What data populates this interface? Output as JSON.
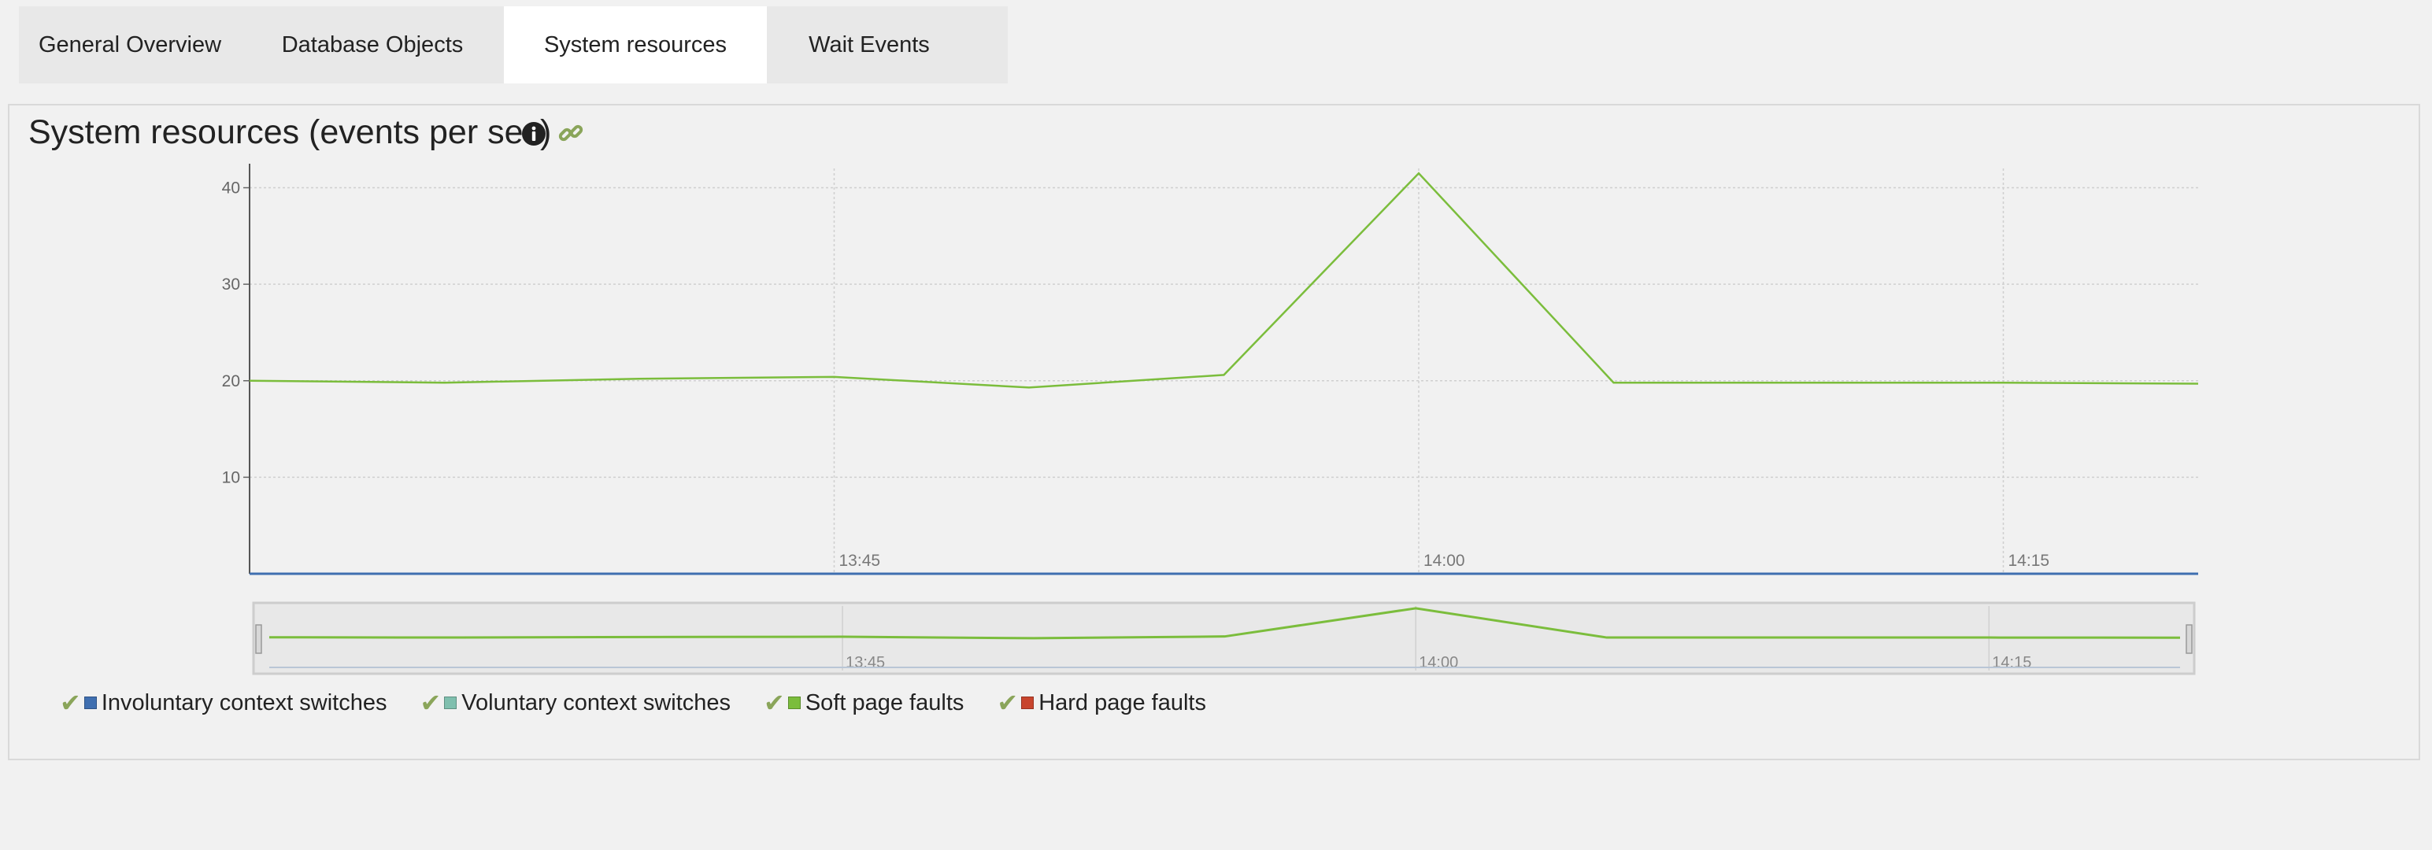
{
  "tabs": [
    {
      "label": "General Overview",
      "active": false
    },
    {
      "label": "Database Objects",
      "active": false
    },
    {
      "label": "System resources",
      "active": true
    },
    {
      "label": "Wait Events",
      "active": false
    }
  ],
  "panel": {
    "title": "System resources (events per sec)",
    "icons": [
      "info-icon",
      "link-icon"
    ]
  },
  "colors": {
    "involuntary": "#3f6fb0",
    "voluntary": "#7fbfae",
    "soft": "#7bbd3c",
    "hard": "#c8452e",
    "check": "#8aa55a"
  },
  "chart_data": {
    "type": "line",
    "x": [
      "13:30",
      "13:35",
      "13:40",
      "13:45",
      "13:50",
      "13:55",
      "14:00",
      "14:05",
      "14:10",
      "14:15",
      "14:20"
    ],
    "x_ticks": [
      "13:45",
      "14:00",
      "14:15"
    ],
    "y_ticks": [
      "10",
      "20",
      "30",
      "40"
    ],
    "ylim": [
      0,
      42
    ],
    "grid": true,
    "legend_position": "bottom-left",
    "series": [
      {
        "name": "Involuntary context switches",
        "color": "#3f6fb0",
        "values": [
          0,
          0,
          0,
          0,
          0,
          0,
          0,
          0,
          0,
          0,
          0
        ]
      },
      {
        "name": "Voluntary context switches",
        "color": "#7fbfae",
        "values": [
          0,
          0,
          0,
          0,
          0,
          0,
          0,
          0,
          0,
          0,
          0
        ]
      },
      {
        "name": "Soft page faults",
        "color": "#7bbd3c",
        "values": [
          20,
          19.8,
          20.2,
          20.4,
          19.3,
          20.6,
          41.5,
          19.8,
          19.8,
          19.8,
          19.7
        ]
      },
      {
        "name": "Hard page faults",
        "color": "#c8452e",
        "values": [
          0,
          0,
          0,
          0,
          0,
          0,
          0,
          0,
          0,
          0,
          0
        ]
      }
    ],
    "navigator": {
      "x_ticks": [
        "13:45",
        "14:00",
        "14:15"
      ]
    }
  }
}
